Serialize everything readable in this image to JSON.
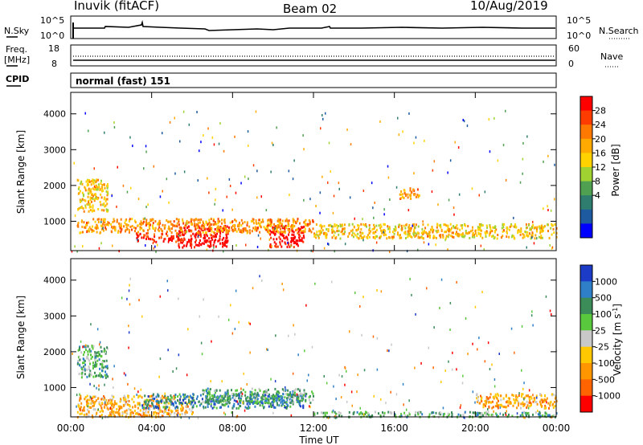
{
  "header": {
    "station": "Inuvik (fitACF)",
    "beam": "Beam 02",
    "date": "10/Aug/2019"
  },
  "nsky_panel": {
    "left_label": "N.Sky",
    "right_label": "N.Search",
    "left_ticks": [
      "10^5",
      "10^0"
    ],
    "right_ticks": [
      "10^5",
      "10^0"
    ]
  },
  "freq_panel": {
    "left_label_line1": "Freq.",
    "left_label_line2": "[MHz]",
    "right_label": "Nave",
    "left_ticks": [
      "18",
      "8"
    ],
    "right_ticks": [
      "60",
      "0"
    ]
  },
  "cpid": {
    "label": "CPID",
    "value": "normal (fast) 151"
  },
  "colorbar_power": {
    "label": "Power [dB]",
    "ticks": [
      "28",
      "24",
      "20",
      "16",
      "12",
      "8",
      "4"
    ],
    "colors": [
      "#ff0000",
      "#ff3c00",
      "#ff7800",
      "#ffaa00",
      "#ffd200",
      "#a0d232",
      "#4fa050",
      "#2e7d6e",
      "#1e5aa0",
      "#0000ff"
    ]
  },
  "colorbar_velocity": {
    "label": "Velocity [m s",
    "label_sup": "-1",
    "label_end": "]",
    "ticks": [
      "1000",
      "500",
      "100",
      "25",
      "-25",
      "-100",
      "-500",
      "-1000"
    ],
    "colors": [
      "#1c3cc8",
      "#2f7fc8",
      "#3c8c5a",
      "#5ac83c",
      "#c8c8c8",
      "#ffc800",
      "#ff9600",
      "#ff6400",
      "#ff0000"
    ]
  },
  "chart_data": [
    {
      "type": "heatmap",
      "title": "Power",
      "ylabel": "Slant Range [km]",
      "ylim": [
        180,
        4600
      ],
      "yticks": [
        1000,
        2000,
        3000,
        4000
      ],
      "xlim": [
        0,
        24
      ],
      "xticks": [
        "00:00",
        "04:00",
        "08:00",
        "12:00",
        "16:00",
        "20:00",
        "00:00"
      ],
      "scatter_regions": [
        {
          "t0": 5.3,
          "t1": 7.8,
          "r0": 300,
          "r1": 900,
          "value": "28"
        },
        {
          "t0": 9.8,
          "t1": 11.5,
          "r0": 300,
          "r1": 900,
          "value": "28"
        },
        {
          "t0": 3.2,
          "t1": 5.6,
          "r0": 450,
          "r1": 700,
          "value": "24"
        },
        {
          "t0": 0.3,
          "t1": 12.0,
          "r0": 700,
          "r1": 1100,
          "value": "16"
        },
        {
          "t0": 12.0,
          "t1": 24.0,
          "r0": 550,
          "r1": 950,
          "value": "12"
        },
        {
          "t0": 0.3,
          "t1": 1.8,
          "r0": 1300,
          "r1": 2200,
          "value": "12"
        },
        {
          "t0": 16.2,
          "t1": 17.2,
          "r0": 1650,
          "r1": 1950,
          "value": "16"
        }
      ]
    },
    {
      "type": "heatmap",
      "title": "Velocity",
      "ylabel": "Slant Range [km]",
      "xlabel": "Time UT",
      "ylim": [
        180,
        4600
      ],
      "yticks": [
        1000,
        2000,
        3000,
        4000
      ],
      "xlim": [
        0,
        24
      ],
      "xticks": [
        "00:00",
        "04:00",
        "08:00",
        "12:00",
        "16:00",
        "20:00",
        "00:00"
      ],
      "scatter_regions": [
        {
          "t0": 0.3,
          "t1": 6.0,
          "r0": 200,
          "r1": 800,
          "value": "-500"
        },
        {
          "t0": 3.5,
          "t1": 11.5,
          "r0": 450,
          "r1": 850,
          "value": "100"
        },
        {
          "t0": 6.5,
          "t1": 12.0,
          "r0": 600,
          "r1": 1000,
          "value": "25"
        },
        {
          "t0": 12.0,
          "t1": 24.0,
          "r0": 200,
          "r1": 350,
          "value": "25"
        },
        {
          "t0": 20.0,
          "t1": 24.0,
          "r0": 450,
          "r1": 850,
          "value": "-500"
        },
        {
          "t0": 0.3,
          "t1": 1.8,
          "r0": 1300,
          "r1": 2200,
          "value": "25"
        }
      ]
    }
  ]
}
